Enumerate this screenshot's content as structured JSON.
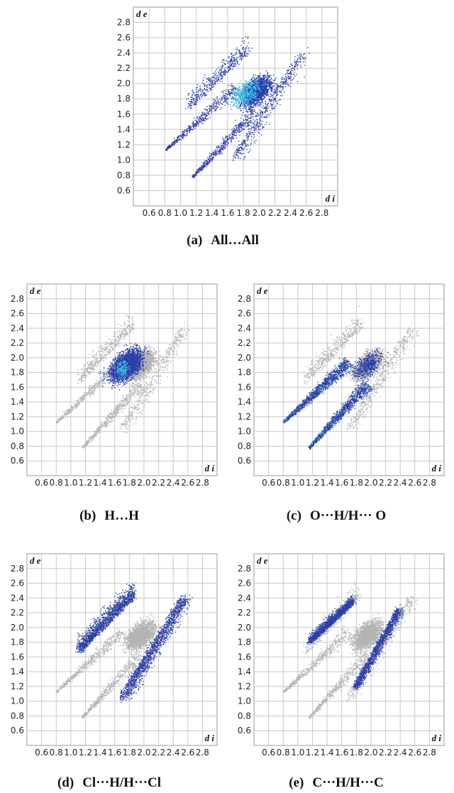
{
  "colors": {
    "blue": "#2a3fa8",
    "cyan": "#42c3e8",
    "gray": "#b4b4b4",
    "grid": "#c8c8c8"
  },
  "chart_data": [
    {
      "type": "scatter",
      "label": "(a)",
      "title": "All…All",
      "xlabel": "d i",
      "ylabel": "d e",
      "xlim": [
        0.4,
        3.0
      ],
      "ylim": [
        0.4,
        3.0
      ],
      "xticks": [
        "0.6",
        "0.8",
        "1.0",
        "1.2",
        "1.4",
        "1.6",
        "1.8",
        "2.0",
        "2.2",
        "2.4",
        "2.6",
        "2.8"
      ],
      "yticks": [
        "0.6",
        "0.8",
        "1.0",
        "1.2",
        "1.4",
        "1.6",
        "1.8",
        "2.0",
        "2.2",
        "2.4",
        "2.6",
        "2.8"
      ],
      "highlight_regions": [
        "all"
      ]
    },
    {
      "type": "scatter",
      "label": "(b)",
      "title": "H…H",
      "xlabel": "d i",
      "ylabel": "d e",
      "xlim": [
        0.4,
        3.0
      ],
      "ylim": [
        0.4,
        3.0
      ],
      "xticks": [
        "0.6",
        "0.8",
        "1.0",
        "1.2",
        "1.4",
        "1.6",
        "1.8",
        "2.0",
        "2.2",
        "2.4",
        "2.6",
        "2.8"
      ],
      "yticks": [
        "0.6",
        "0.8",
        "1.0",
        "1.2",
        "1.4",
        "1.6",
        "1.8",
        "2.0",
        "2.2",
        "2.4",
        "2.6",
        "2.8"
      ],
      "highlight_regions": [
        "center"
      ]
    },
    {
      "type": "scatter",
      "label": "(c)",
      "title": "O···H/H··· O",
      "xlabel": "d i",
      "ylabel": "d e",
      "xlim": [
        0.4,
        3.0
      ],
      "ylim": [
        0.4,
        3.0
      ],
      "xticks": [
        "0.6",
        "0.8",
        "1.0",
        "1.2",
        "1.4",
        "1.6",
        "1.8",
        "2.0",
        "2.2",
        "2.4",
        "2.6",
        "2.8"
      ],
      "yticks": [
        "0.6",
        "0.8",
        "1.0",
        "1.2",
        "1.4",
        "1.6",
        "1.8",
        "2.0",
        "2.2",
        "2.4",
        "2.6",
        "2.8"
      ],
      "highlight_regions": [
        "spikes"
      ]
    },
    {
      "type": "scatter",
      "label": "(d)",
      "title": "Cl···H/H···Cl",
      "xlabel": "d i",
      "ylabel": "d e",
      "xlim": [
        0.4,
        3.0
      ],
      "ylim": [
        0.4,
        3.0
      ],
      "xticks": [
        "0.6",
        "0.8",
        "1.0",
        "1.2",
        "1.4",
        "1.6",
        "1.8",
        "2.0",
        "2.2",
        "2.4",
        "2.6",
        "2.8"
      ],
      "yticks": [
        "0.6",
        "0.8",
        "1.0",
        "1.2",
        "1.4",
        "1.6",
        "1.8",
        "2.0",
        "2.2",
        "2.4",
        "2.6",
        "2.8"
      ],
      "highlight_regions": [
        "wings-large"
      ]
    },
    {
      "type": "scatter",
      "label": "(e)",
      "title": "C···H/H···C",
      "xlabel": "d i",
      "ylabel": "d e",
      "xlim": [
        0.4,
        3.0
      ],
      "ylim": [
        0.4,
        3.0
      ],
      "xticks": [
        "0.6",
        "0.8",
        "1.0",
        "1.2",
        "1.4",
        "1.6",
        "1.8",
        "2.0",
        "2.2",
        "2.4",
        "2.6",
        "2.8"
      ],
      "yticks": [
        "0.6",
        "0.8",
        "1.0",
        "1.2",
        "1.4",
        "1.6",
        "1.8",
        "2.0",
        "2.2",
        "2.4",
        "2.6",
        "2.8"
      ],
      "highlight_regions": [
        "wings-small"
      ]
    }
  ]
}
